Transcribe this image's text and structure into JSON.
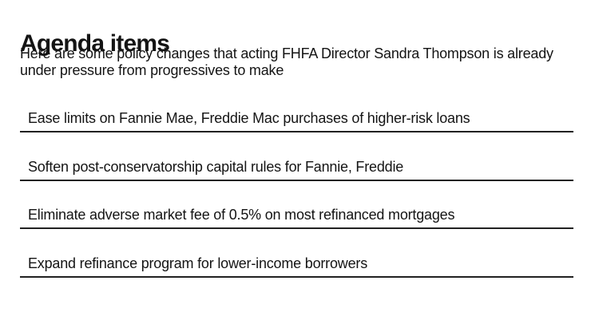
{
  "header": {
    "title": "Agenda items",
    "subtitle_line1": "Here are some policy changes that acting FHFA Director Sandra Thompson is already",
    "subtitle_line2": "under pressure from progressives to make"
  },
  "agenda": {
    "items": [
      {
        "label": "Ease limits on Fannie Mae, Freddie Mac purchases of higher-risk loans"
      },
      {
        "label": "Soften post-conservatorship capital rules for Fannie, Freddie"
      },
      {
        "label": "Eliminate adverse market fee of 0.5% on most refinanced mortgages"
      },
      {
        "label": "Expand refinance program for lower-income borrowers"
      }
    ]
  },
  "colors": {
    "background": "#ffffff",
    "text": "#141414",
    "rule": "#212121"
  }
}
